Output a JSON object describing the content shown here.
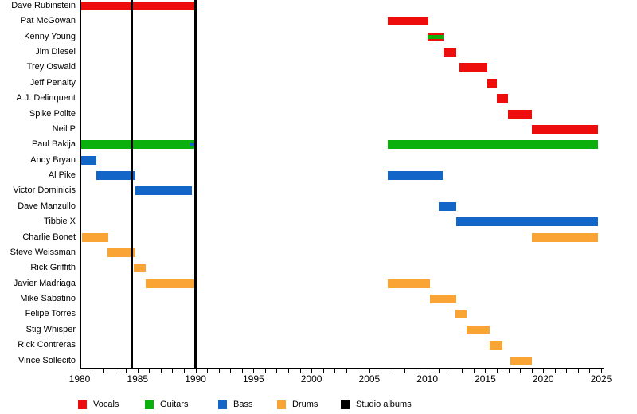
{
  "chart_data": {
    "type": "timeline",
    "description": "Band member timeline (gantt-style) with roles as colored bars and studio album release lines",
    "x_axis": {
      "min": 1980,
      "max": 2025,
      "minor_tick_years": 1,
      "label_every_years": 5,
      "tick_labels": [
        "1980",
        "1985",
        "1990",
        "1995",
        "2000",
        "2005",
        "2010",
        "2015",
        "2020",
        "2025"
      ]
    },
    "present_end": 2024.7,
    "grid": false,
    "legend_position": "bottom",
    "legend": [
      {
        "label": "Vocals",
        "role": "vocals",
        "color": "#ee0d0d"
      },
      {
        "label": "Guitars",
        "role": "guitars",
        "color": "#0cb00c"
      },
      {
        "label": "Bass",
        "role": "bass",
        "color": "#1465c8"
      },
      {
        "label": "Drums",
        "role": "drums",
        "color": "#f9a435"
      },
      {
        "label": "Studio albums",
        "role": "albums",
        "color": "#000000"
      }
    ],
    "role_colors": {
      "vocals": "#ee0d0d",
      "guitars": "#0cb00c",
      "bass": "#1465c8",
      "drums": "#f9a435",
      "albums": "#000000"
    },
    "studio_albums_years": [
      1984.5,
      1990
    ],
    "rows": [
      {
        "name": "Dave Rubinstein",
        "bars": [
          {
            "role": "vocals",
            "start": 1980,
            "end": 1990
          }
        ]
      },
      {
        "name": "Pat McGowan",
        "bars": [
          {
            "role": "vocals",
            "start": 2006.6,
            "end": 2010.1
          }
        ]
      },
      {
        "name": "Kenny Young",
        "bars": [
          {
            "role": "vocals",
            "start": 2010,
            "end": 2011.4
          }
        ],
        "stripes": [
          {
            "role": "guitars",
            "start": 2010,
            "end": 2011.4
          }
        ]
      },
      {
        "name": "Jim Diesel",
        "bars": [
          {
            "role": "vocals",
            "start": 2011.4,
            "end": 2012.5
          }
        ]
      },
      {
        "name": "Trey Oswald",
        "bars": [
          {
            "role": "vocals",
            "start": 2012.75,
            "end": 2015.2
          }
        ]
      },
      {
        "name": "Jeff Penalty",
        "bars": [
          {
            "role": "vocals",
            "start": 2015.2,
            "end": 2016
          }
        ]
      },
      {
        "name": "A.J. Delinquent",
        "bars": [
          {
            "role": "vocals",
            "start": 2016,
            "end": 2016.95
          }
        ]
      },
      {
        "name": "Spike Polite",
        "bars": [
          {
            "role": "vocals",
            "start": 2016.95,
            "end": 2019
          }
        ]
      },
      {
        "name": "Neil P",
        "bars": [
          {
            "role": "vocals",
            "start": 2019,
            "end": 2024.7
          }
        ]
      },
      {
        "name": "Paul Bakija",
        "bars": [
          {
            "role": "guitars",
            "start": 1980,
            "end": 1990
          },
          {
            "role": "guitars",
            "start": 2006.6,
            "end": 2024.7
          }
        ],
        "stripes": [
          {
            "role": "bass",
            "start": 1989.5,
            "end": 1990
          }
        ]
      },
      {
        "name": "Andy Bryan",
        "bars": [
          {
            "role": "bass",
            "start": 1980,
            "end": 1981.45
          }
        ]
      },
      {
        "name": "Al Pike",
        "bars": [
          {
            "role": "bass",
            "start": 1981.45,
            "end": 1984.8
          },
          {
            "role": "bass",
            "start": 2006.6,
            "end": 2011.3
          }
        ]
      },
      {
        "name": "Victor Dominicis",
        "bars": [
          {
            "role": "bass",
            "start": 1984.8,
            "end": 1989.7
          }
        ]
      },
      {
        "name": "Dave Manzullo",
        "bars": [
          {
            "role": "bass",
            "start": 2011,
            "end": 2012.5
          }
        ]
      },
      {
        "name": "Tibbie X",
        "bars": [
          {
            "role": "bass",
            "start": 2012.5,
            "end": 2024.7
          }
        ]
      },
      {
        "name": "Charlie Bonet",
        "bars": [
          {
            "role": "drums",
            "start": 1980.2,
            "end": 1982.45
          },
          {
            "role": "drums",
            "start": 2019,
            "end": 2024.7
          }
        ]
      },
      {
        "name": "Steve Weissman",
        "bars": [
          {
            "role": "drums",
            "start": 1982.4,
            "end": 1984.8
          }
        ]
      },
      {
        "name": "Rick Griffith",
        "bars": [
          {
            "role": "drums",
            "start": 1984.7,
            "end": 1985.7
          }
        ]
      },
      {
        "name": "Javier Madriaga",
        "bars": [
          {
            "role": "drums",
            "start": 1985.7,
            "end": 1990
          },
          {
            "role": "drums",
            "start": 2006.6,
            "end": 2010.2
          }
        ]
      },
      {
        "name": "Mike Sabatino",
        "bars": [
          {
            "role": "drums",
            "start": 2010.2,
            "end": 2012.5
          }
        ]
      },
      {
        "name": "Felipe Torres",
        "bars": [
          {
            "role": "drums",
            "start": 2012.4,
            "end": 2013.4
          }
        ]
      },
      {
        "name": "Stig Whisper",
        "bars": [
          {
            "role": "drums",
            "start": 2013.4,
            "end": 2015.4
          }
        ]
      },
      {
        "name": "Rick Contreras",
        "bars": [
          {
            "role": "drums",
            "start": 2015.35,
            "end": 2016.45
          }
        ]
      },
      {
        "name": "Vince Sollecito",
        "bars": [
          {
            "role": "drums",
            "start": 2017.15,
            "end": 2019
          }
        ]
      }
    ]
  }
}
